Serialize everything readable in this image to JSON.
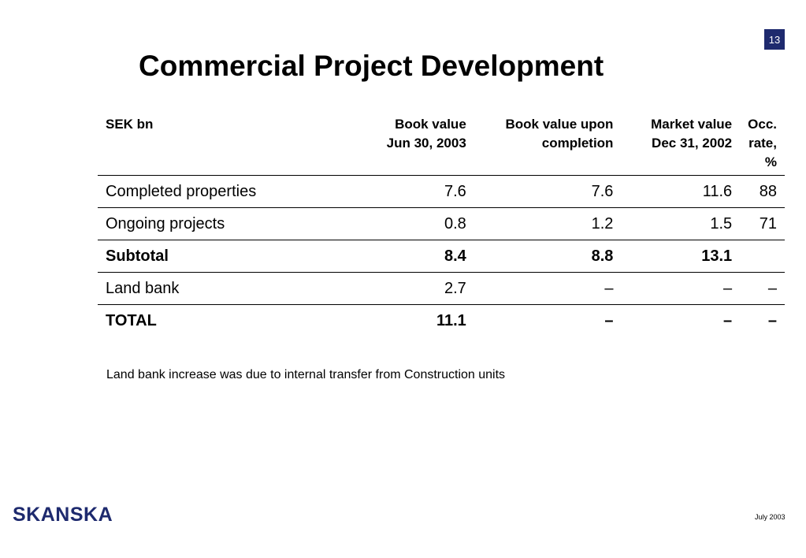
{
  "page_number": "13",
  "title": "Commercial Project Development",
  "table": {
    "headers": {
      "label": "SEK bn",
      "book_value_line1": "Book value",
      "book_value_line2": "Jun 30, 2003",
      "book_value_upon_line1": "Book value upon",
      "book_value_upon_line2": "completion",
      "market_value_line1": "Market value",
      "market_value_line2": "Dec 31, 2002",
      "occ_line1": "Occ.",
      "occ_line2": "rate, %"
    },
    "rows": [
      {
        "label": "Completed properties",
        "book_value": "7.6",
        "book_value_upon_completion": "7.6",
        "market_value": "11.6",
        "occ_rate": "88",
        "bold": false
      },
      {
        "label": "Ongoing projects",
        "book_value": "0.8",
        "book_value_upon_completion": "1.2",
        "market_value": "1.5",
        "occ_rate": "71",
        "bold": false
      },
      {
        "label": "Subtotal",
        "book_value": "8.4",
        "book_value_upon_completion": "8.8",
        "market_value": "13.1",
        "occ_rate": "",
        "bold": true
      },
      {
        "label": "Land bank",
        "book_value": "2.7",
        "book_value_upon_completion": "–",
        "market_value": "–",
        "occ_rate": "–",
        "bold": false
      },
      {
        "label": "TOTAL",
        "book_value": "11.1",
        "book_value_upon_completion": "–",
        "market_value": "–",
        "occ_rate": "–",
        "bold": true
      }
    ]
  },
  "note": "Land bank increase was due to internal transfer from Construction units",
  "logo_text": "SKANSKA",
  "footer_date": "July 2003",
  "colors": {
    "brand_navy": "#1e2a6e"
  }
}
